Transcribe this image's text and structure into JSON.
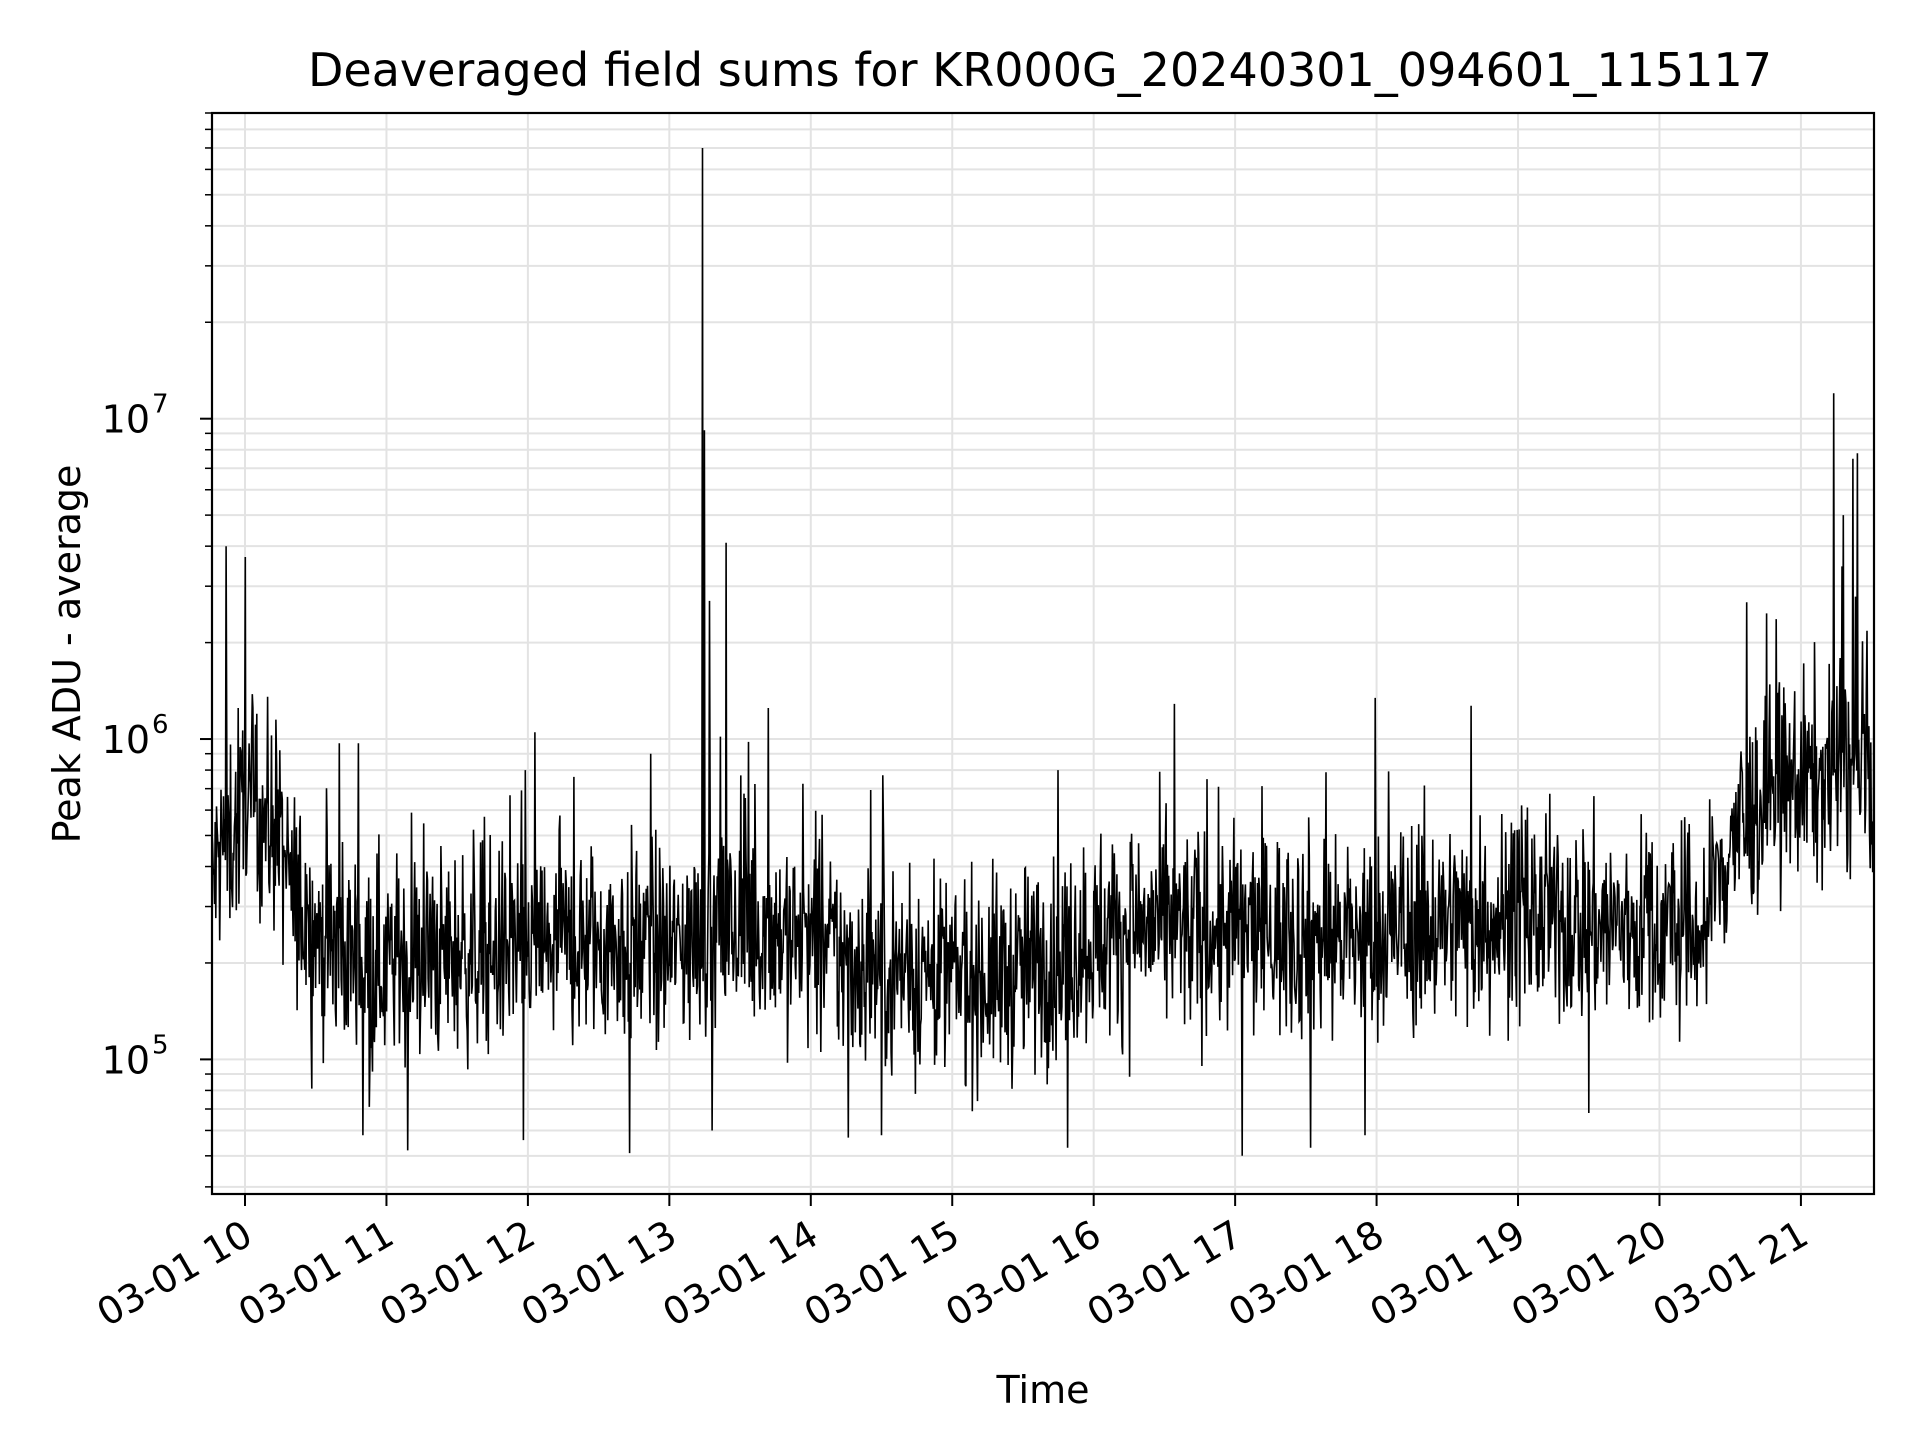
{
  "chart_data": {
    "type": "line",
    "title": "Deaveraged field sums for KR000G_20240301_094601_115117",
    "xlabel": "Time",
    "ylabel": "Peak ADU - average",
    "x_type": "datetime",
    "xlim": [
      "2024-03-01 09:46",
      "2024-03-01 21:31"
    ],
    "ylim": [
      38000,
      90000000
    ],
    "yscale": "log",
    "grid": {
      "major": true,
      "minor": true,
      "color": "#e3e3e3"
    },
    "line_color": "#000000",
    "x_ticks": [
      "03-01 10",
      "03-01 11",
      "03-01 12",
      "03-01 13",
      "03-01 14",
      "03-01 15",
      "03-01 16",
      "03-01 17",
      "03-01 18",
      "03-01 19",
      "03-01 20",
      "03-01 21"
    ],
    "x_tick_hours": [
      10,
      11,
      12,
      13,
      14,
      15,
      16,
      17,
      18,
      19,
      20,
      21
    ],
    "y_ticks": [
      {
        "value": 100000,
        "base": "10",
        "exp": "5"
      },
      {
        "value": 1000000,
        "base": "10",
        "exp": "6"
      },
      {
        "value": 10000000,
        "base": "10",
        "exp": "7"
      }
    ],
    "series": [
      {
        "x": [
          "2024-03-01 09:46",
          "2024-03-01 09:50",
          "2024-03-01 09:55",
          "2024-03-01 10:00",
          "2024-03-01 10:05",
          "2024-03-01 10:10",
          "2024-03-01 10:15",
          "2024-03-01 10:20",
          "2024-03-01 10:30",
          "2024-03-01 10:40",
          "2024-03-01 11:00",
          "2024-03-01 11:20",
          "2024-03-01 11:40",
          "2024-03-01 12:00",
          "2024-03-01 12:20",
          "2024-03-01 12:40",
          "2024-03-01 13:00",
          "2024-03-01 13:20",
          "2024-03-01 13:40",
          "2024-03-01 14:00",
          "2024-03-01 14:20",
          "2024-03-01 14:40",
          "2024-03-01 15:00",
          "2024-03-01 15:20",
          "2024-03-01 15:40",
          "2024-03-01 16:00",
          "2024-03-01 16:20",
          "2024-03-01 16:40",
          "2024-03-01 17:00",
          "2024-03-01 17:20",
          "2024-03-01 17:40",
          "2024-03-01 18:00",
          "2024-03-01 18:20",
          "2024-03-01 18:40",
          "2024-03-01 19:00",
          "2024-03-01 19:20",
          "2024-03-01 19:40",
          "2024-03-01 20:00",
          "2024-03-01 20:05",
          "2024-03-01 20:10",
          "2024-03-01 20:15",
          "2024-03-01 20:20",
          "2024-03-01 20:30",
          "2024-03-01 20:45",
          "2024-03-01 21:00",
          "2024-03-01 21:15",
          "2024-03-01 21:31"
        ],
        "baseline": [
          350000,
          450000,
          520000,
          560000,
          600000,
          550000,
          450000,
          330000,
          250000,
          220000,
          200000,
          210000,
          220000,
          220000,
          230000,
          230000,
          220000,
          250000,
          260000,
          230000,
          200000,
          190000,
          180000,
          180000,
          200000,
          240000,
          260000,
          250000,
          250000,
          250000,
          240000,
          240000,
          260000,
          270000,
          280000,
          270000,
          260000,
          260000,
          250000,
          250000,
          250000,
          260000,
          480000,
          650000,
          750000,
          760000,
          750000
        ],
        "spikes": [
          {
            "x": "2024-03-01 09:52",
            "y": 4000000
          },
          {
            "x": "2024-03-01 10:00",
            "y": 3700000
          },
          {
            "x": "2024-03-01 09:57",
            "y": 1250000
          },
          {
            "x": "2024-03-01 10:05",
            "y": 1200000
          },
          {
            "x": "2024-03-01 10:13",
            "y": 1150000
          },
          {
            "x": "2024-03-01 10:40",
            "y": 970000
          },
          {
            "x": "2024-03-01 10:48",
            "y": 970000
          },
          {
            "x": "2024-03-01 11:59",
            "y": 800000
          },
          {
            "x": "2024-03-01 12:03",
            "y": 1050000
          },
          {
            "x": "2024-03-01 12:52",
            "y": 900000
          },
          {
            "x": "2024-03-01 13:14",
            "y": 70000000
          },
          {
            "x": "2024-03-01 13:15",
            "y": 9200000
          },
          {
            "x": "2024-03-01 13:17",
            "y": 2700000
          },
          {
            "x": "2024-03-01 13:24",
            "y": 4100000
          },
          {
            "x": "2024-03-01 13:42",
            "y": 1250000
          },
          {
            "x": "2024-03-01 15:45",
            "y": 800000
          },
          {
            "x": "2024-03-01 16:48",
            "y": 750000
          },
          {
            "x": "2024-03-01 18:40",
            "y": 1270000
          },
          {
            "x": "2024-03-01 21:14",
            "y": 12000000
          },
          {
            "x": "2024-03-01 21:18",
            "y": 5000000
          },
          {
            "x": "2024-03-01 21:22",
            "y": 7500000
          },
          {
            "x": "2024-03-01 21:24",
            "y": 7800000
          },
          {
            "x": "2024-03-01 21:19",
            "y": 1300000
          }
        ],
        "dips": [
          {
            "x": "2024-03-01 10:50",
            "y": 58000
          },
          {
            "x": "2024-03-01 11:09",
            "y": 52000
          },
          {
            "x": "2024-03-01 11:58",
            "y": 56000
          },
          {
            "x": "2024-03-01 12:43",
            "y": 51000
          },
          {
            "x": "2024-03-01 13:18",
            "y": 60000
          },
          {
            "x": "2024-03-01 14:16",
            "y": 57000
          },
          {
            "x": "2024-03-01 14:30",
            "y": 58000
          },
          {
            "x": "2024-03-01 15:49",
            "y": 53000
          },
          {
            "x": "2024-03-01 17:03",
            "y": 50000
          },
          {
            "x": "2024-03-01 17:32",
            "y": 53000
          },
          {
            "x": "2024-03-01 17:55",
            "y": 58000
          },
          {
            "x": "2024-03-01 19:30",
            "y": 68000
          }
        ]
      }
    ]
  }
}
